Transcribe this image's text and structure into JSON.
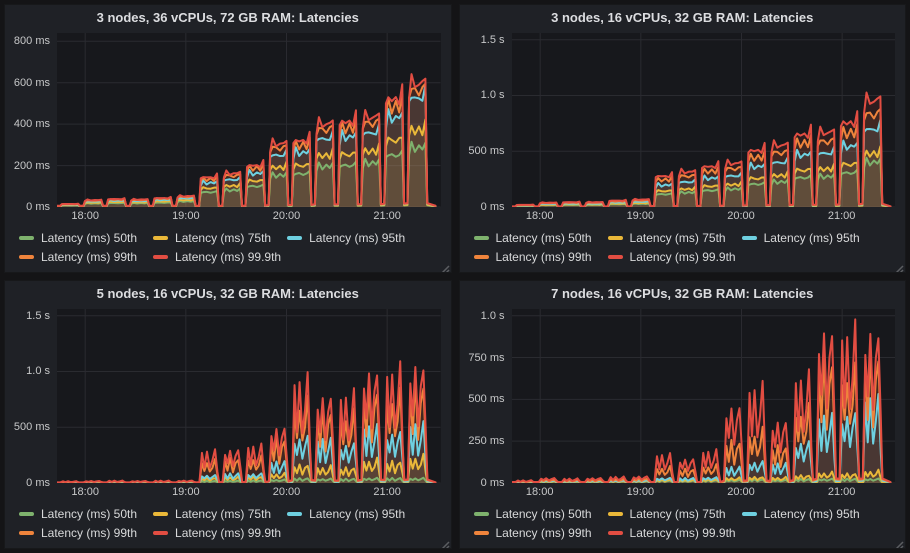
{
  "page": {
    "bg": "#141416",
    "panel_bg": "#1f2126",
    "plot_bg": "#17181c",
    "grid_color": "#2a2b30",
    "title_color": "#dcdde0",
    "tick_color": "#c7c8c9"
  },
  "legend": {
    "items": [
      {
        "key": "p50",
        "label": "Latency (ms) 50th",
        "color": "#7eb26d"
      },
      {
        "key": "p75",
        "label": "Latency (ms) 75th",
        "color": "#eab839"
      },
      {
        "key": "p95",
        "label": "Latency (ms) 95th",
        "color": "#6ed0e0"
      },
      {
        "key": "p99",
        "label": "Latency (ms) 99th",
        "color": "#ef843c"
      },
      {
        "key": "p999",
        "label": "Latency (ms) 99.9th",
        "color": "#e24d42"
      }
    ]
  },
  "chart_data": [
    {
      "type": "area",
      "title": "3 nodes, 36 vCPUs, 72 GB RAM: Latencies",
      "style": "plateau",
      "x_range_hours": [
        17.72,
        21.53
      ],
      "x_ticks": [
        {
          "t": 18,
          "label": "18:00"
        },
        {
          "t": 19,
          "label": "19:00"
        },
        {
          "t": 20,
          "label": "20:00"
        },
        {
          "t": 21,
          "label": "21:00"
        }
      ],
      "y_ticks": [
        {
          "v": 0,
          "label": "0 ms"
        },
        {
          "v": 200,
          "label": "200 ms"
        },
        {
          "v": 400,
          "label": "400 ms"
        },
        {
          "v": 600,
          "label": "600 ms"
        },
        {
          "v": 800,
          "label": "800 ms"
        }
      ],
      "ylim": [
        0,
        840
      ],
      "series_names": [
        "Latency (ms) 50th",
        "Latency (ms) 75th",
        "Latency (ms) 95th",
        "Latency (ms) 99th",
        "Latency (ms) 99.9th"
      ],
      "burst_columns": [
        "time_h",
        "p50_ms",
        "p75_ms",
        "p95_ms",
        "p99_ms",
        "p999_ms"
      ],
      "bursts": [
        [
          17.85,
          8,
          10,
          12,
          14,
          15
        ],
        [
          18.08,
          18,
          22,
          28,
          32,
          35
        ],
        [
          18.31,
          20,
          25,
          32,
          37,
          40
        ],
        [
          18.54,
          19,
          24,
          30,
          35,
          38
        ],
        [
          18.77,
          22,
          28,
          36,
          42,
          45
        ],
        [
          19.0,
          28,
          35,
          44,
          51,
          55
        ],
        [
          19.23,
          75,
          95,
          122,
          140,
          150
        ],
        [
          19.46,
          85,
          107,
          138,
          158,
          170
        ],
        [
          19.69,
          105,
          132,
          170,
          196,
          210
        ],
        [
          19.92,
          160,
          200,
          262,
          298,
          320
        ],
        [
          20.15,
          168,
          210,
          275,
          312,
          335
        ],
        [
          20.38,
          205,
          260,
          345,
          392,
          420
        ],
        [
          20.61,
          210,
          266,
          355,
          400,
          430
        ],
        [
          20.84,
          222,
          282,
          375,
          424,
          455
        ],
        [
          21.07,
          262,
          338,
          452,
          508,
          545
        ],
        [
          21.3,
          300,
          388,
          552,
          590,
          625
        ]
      ]
    },
    {
      "type": "area",
      "title": "3 nodes, 16 vCPUs, 32 GB RAM: Latencies",
      "style": "plateau",
      "x_range_hours": [
        17.72,
        21.53
      ],
      "x_ticks": [
        {
          "t": 18,
          "label": "18:00"
        },
        {
          "t": 19,
          "label": "19:00"
        },
        {
          "t": 20,
          "label": "20:00"
        },
        {
          "t": 21,
          "label": "21:00"
        }
      ],
      "y_ticks": [
        {
          "v": 0,
          "label": "0 ms"
        },
        {
          "v": 500,
          "label": "500 ms"
        },
        {
          "v": 1000,
          "label": "1.0 s"
        },
        {
          "v": 1500,
          "label": "1.5 s"
        }
      ],
      "ylim": [
        0,
        1560
      ],
      "series_names": [
        "Latency (ms) 50th",
        "Latency (ms) 75th",
        "Latency (ms) 95th",
        "Latency (ms) 99th",
        "Latency (ms) 99.9th"
      ],
      "burst_columns": [
        "time_h",
        "p50_ms",
        "p75_ms",
        "p95_ms",
        "p99_ms",
        "p999_ms"
      ],
      "bursts": [
        [
          17.85,
          10,
          12,
          15,
          18,
          20
        ],
        [
          18.08,
          18,
          22,
          28,
          35,
          40
        ],
        [
          18.31,
          20,
          25,
          32,
          40,
          45
        ],
        [
          18.54,
          20,
          25,
          32,
          40,
          45
        ],
        [
          18.77,
          26,
          32,
          42,
          52,
          60
        ],
        [
          19.0,
          30,
          38,
          50,
          62,
          70
        ],
        [
          19.23,
          120,
          150,
          205,
          255,
          290
        ],
        [
          19.46,
          135,
          168,
          235,
          290,
          330
        ],
        [
          19.69,
          155,
          195,
          270,
          335,
          380
        ],
        [
          19.92,
          168,
          210,
          292,
          360,
          410
        ],
        [
          20.15,
          215,
          268,
          380,
          465,
          530
        ],
        [
          20.38,
          235,
          295,
          418,
          510,
          580
        ],
        [
          20.61,
          275,
          345,
          490,
          598,
          680
        ],
        [
          20.84,
          285,
          356,
          505,
          615,
          700
        ],
        [
          21.07,
          320,
          400,
          570,
          695,
          790
        ],
        [
          21.3,
          420,
          500,
          730,
          870,
          1000
        ]
      ]
    },
    {
      "type": "area",
      "title": "5 nodes, 16 vCPUs, 32 GB RAM: Latencies",
      "style": "spiky",
      "x_range_hours": [
        17.72,
        21.53
      ],
      "x_ticks": [
        {
          "t": 18,
          "label": "18:00"
        },
        {
          "t": 19,
          "label": "19:00"
        },
        {
          "t": 20,
          "label": "20:00"
        },
        {
          "t": 21,
          "label": "21:00"
        }
      ],
      "y_ticks": [
        {
          "v": 0,
          "label": "0 ms"
        },
        {
          "v": 500,
          "label": "500 ms"
        },
        {
          "v": 1000,
          "label": "1.0 s"
        },
        {
          "v": 1500,
          "label": "1.5 s"
        }
      ],
      "ylim": [
        0,
        1560
      ],
      "series_names": [
        "Latency (ms) 50th",
        "Latency (ms) 75th",
        "Latency (ms) 95th",
        "Latency (ms) 99th",
        "Latency (ms) 99.9th"
      ],
      "burst_columns": [
        "time_h",
        "p50_ms",
        "p75_ms",
        "p95_ms",
        "p99_ms",
        "p999_ms"
      ],
      "bursts": [
        [
          17.85,
          6,
          8,
          10,
          12,
          15
        ],
        [
          18.08,
          7,
          9,
          12,
          15,
          18
        ],
        [
          18.31,
          8,
          10,
          13,
          16,
          20
        ],
        [
          18.54,
          7,
          9,
          12,
          15,
          18
        ],
        [
          18.77,
          8,
          10,
          13,
          16,
          20
        ],
        [
          19.0,
          9,
          11,
          14,
          18,
          22
        ],
        [
          19.23,
          18,
          45,
          70,
          190,
          270
        ],
        [
          19.46,
          20,
          50,
          80,
          210,
          300
        ],
        [
          19.69,
          22,
          55,
          85,
          220,
          315
        ],
        [
          19.92,
          30,
          80,
          180,
          380,
          500
        ],
        [
          20.15,
          40,
          160,
          420,
          700,
          880
        ],
        [
          20.38,
          38,
          140,
          370,
          620,
          780
        ],
        [
          20.61,
          36,
          135,
          355,
          600,
          750
        ],
        [
          20.84,
          45,
          200,
          480,
          800,
          1000
        ],
        [
          21.07,
          42,
          190,
          460,
          770,
          960
        ],
        [
          21.3,
          45,
          230,
          500,
          850,
          1050
        ]
      ]
    },
    {
      "type": "area",
      "title": "7 nodes, 16 vCPUs, 32 GB RAM: Latencies",
      "style": "spiky",
      "x_range_hours": [
        17.72,
        21.53
      ],
      "x_ticks": [
        {
          "t": 18,
          "label": "18:00"
        },
        {
          "t": 19,
          "label": "19:00"
        },
        {
          "t": 20,
          "label": "20:00"
        },
        {
          "t": 21,
          "label": "21:00"
        }
      ],
      "y_ticks": [
        {
          "v": 0,
          "label": "0 ms"
        },
        {
          "v": 250,
          "label": "250 ms"
        },
        {
          "v": 500,
          "label": "500 ms"
        },
        {
          "v": 750,
          "label": "750 ms"
        },
        {
          "v": 1000,
          "label": "1.0 s"
        }
      ],
      "ylim": [
        0,
        1040
      ],
      "series_names": [
        "Latency (ms) 50th",
        "Latency (ms) 75th",
        "Latency (ms) 95th",
        "Latency (ms) 99th",
        "Latency (ms) 99.9th"
      ],
      "burst_columns": [
        "time_h",
        "p50_ms",
        "p75_ms",
        "p95_ms",
        "p99_ms",
        "p999_ms"
      ],
      "bursts": [
        [
          17.85,
          5,
          7,
          9,
          11,
          15
        ],
        [
          18.08,
          8,
          10,
          14,
          20,
          30
        ],
        [
          18.31,
          7,
          9,
          12,
          17,
          25
        ],
        [
          18.54,
          8,
          10,
          13,
          19,
          30
        ],
        [
          18.77,
          9,
          11,
          15,
          22,
          35
        ],
        [
          19.0,
          10,
          12,
          16,
          25,
          40
        ],
        [
          19.23,
          14,
          20,
          30,
          90,
          160
        ],
        [
          19.46,
          13,
          18,
          28,
          80,
          145
        ],
        [
          19.69,
          15,
          22,
          34,
          100,
          180
        ],
        [
          19.92,
          18,
          30,
          90,
          240,
          460
        ],
        [
          20.15,
          20,
          35,
          130,
          300,
          540
        ],
        [
          20.38,
          18,
          32,
          110,
          210,
          370
        ],
        [
          20.61,
          22,
          45,
          250,
          430,
          600
        ],
        [
          20.84,
          25,
          60,
          380,
          700,
          910
        ],
        [
          21.07,
          24,
          55,
          420,
          650,
          860
        ],
        [
          21.3,
          26,
          70,
          480,
          730,
          900
        ]
      ]
    }
  ]
}
